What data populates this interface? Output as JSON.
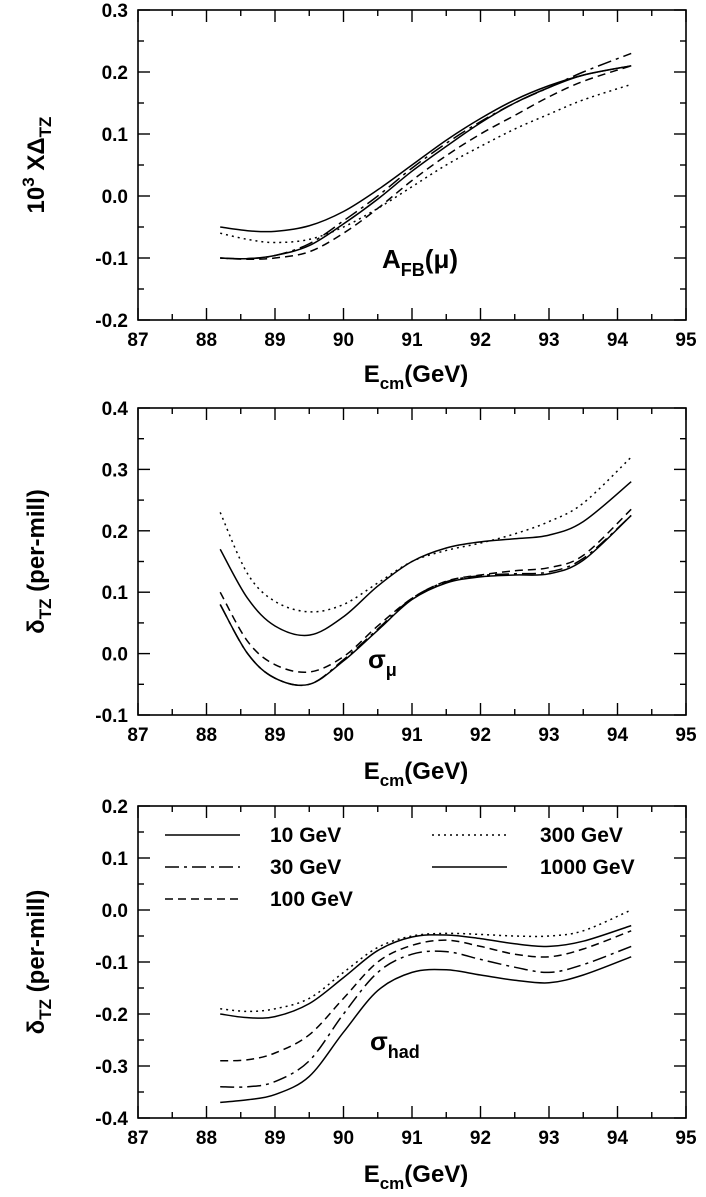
{
  "chart_data": [
    {
      "type": "line",
      "panel": "top",
      "ylabel": "10^3 XΔTZ",
      "ylabel_parts": {
        "base": "10",
        "sup": "3",
        "mid": " X",
        "greek": "Δ",
        "sub": "TZ"
      },
      "xlabel_parts": {
        "base": "E",
        "sub": "cm",
        "rest": "(GeV)"
      },
      "annotation": {
        "base": "A",
        "sub": "FB",
        "rest": "(μ)"
      },
      "xlim": [
        87,
        95
      ],
      "ylim": [
        -0.2,
        0.3
      ],
      "xticks": [
        87,
        88,
        89,
        90,
        91,
        92,
        93,
        94,
        95
      ],
      "xtick_labels": [
        "87",
        "88",
        "89",
        "90",
        "91",
        "92",
        "93",
        "94",
        "95"
      ],
      "yticks": [
        -0.2,
        -0.1,
        0.0,
        0.1,
        0.2,
        0.3
      ],
      "ytick_labels": [
        "-0.2",
        "-0.1",
        "0.0",
        "0.1",
        "0.2",
        "0.3"
      ],
      "x": [
        88.2,
        88.6,
        89.0,
        89.5,
        90.0,
        90.5,
        91.0,
        91.5,
        92.0,
        92.5,
        93.0,
        93.5,
        94.2
      ],
      "series": [
        {
          "name": "10 GeV",
          "style": "solid",
          "values": [
            -0.05,
            -0.056,
            -0.057,
            -0.048,
            -0.025,
            0.01,
            0.05,
            0.09,
            0.125,
            0.155,
            0.178,
            0.195,
            0.21
          ]
        },
        {
          "name": "30 GeV",
          "style": "dashdot",
          "values": [
            -0.1,
            -0.101,
            -0.096,
            -0.077,
            -0.04,
            0.0,
            0.045,
            0.085,
            0.12,
            0.15,
            0.175,
            0.2,
            0.23
          ]
        },
        {
          "name": "100 GeV",
          "style": "dashed",
          "values": [
            -0.1,
            -0.102,
            -0.1,
            -0.09,
            -0.06,
            -0.02,
            0.025,
            0.065,
            0.1,
            0.13,
            0.16,
            0.185,
            0.21
          ]
        },
        {
          "name": "300 GeV",
          "style": "dotted",
          "values": [
            -0.06,
            -0.07,
            -0.075,
            -0.07,
            -0.05,
            -0.02,
            0.015,
            0.05,
            0.08,
            0.108,
            0.132,
            0.155,
            0.18
          ]
        },
        {
          "name": "1000 GeV",
          "style": "solid",
          "values": [
            -0.1,
            -0.101,
            -0.096,
            -0.08,
            -0.045,
            -0.005,
            0.04,
            0.08,
            0.118,
            0.15,
            0.175,
            0.195,
            0.21
          ]
        }
      ]
    },
    {
      "type": "line",
      "panel": "middle",
      "ylabel": "δTZ (per-mill)",
      "ylabel_parts": {
        "greek": "δ",
        "sub": "TZ",
        "rest": " (per-mill)"
      },
      "xlabel_parts": {
        "base": "E",
        "sub": "cm",
        "rest": "(GeV)"
      },
      "annotation": {
        "base": "σ",
        "sub": "μ",
        "rest": ""
      },
      "xlim": [
        87,
        95
      ],
      "ylim": [
        -0.1,
        0.4
      ],
      "xticks": [
        87,
        88,
        89,
        90,
        91,
        92,
        93,
        94,
        95
      ],
      "xtick_labels": [
        "87",
        "88",
        "89",
        "90",
        "91",
        "92",
        "93",
        "94",
        "95"
      ],
      "yticks": [
        -0.1,
        0.0,
        0.1,
        0.2,
        0.3,
        0.4
      ],
      "ytick_labels": [
        "-0.1",
        "0.0",
        "0.1",
        "0.2",
        "0.3",
        "0.4"
      ],
      "x": [
        88.2,
        88.6,
        89.0,
        89.5,
        90.0,
        90.5,
        91.0,
        91.5,
        92.0,
        92.5,
        93.0,
        93.5,
        94.2
      ],
      "series": [
        {
          "name": "10 GeV",
          "style": "solid",
          "values": [
            0.17,
            0.09,
            0.045,
            0.03,
            0.06,
            0.11,
            0.15,
            0.172,
            0.182,
            0.187,
            0.193,
            0.215,
            0.28
          ]
        },
        {
          "name": "30 GeV",
          "style": "dashdot",
          "values": [
            0.08,
            0.0,
            -0.04,
            -0.05,
            -0.01,
            0.04,
            0.09,
            0.117,
            0.127,
            0.13,
            0.133,
            0.155,
            0.225
          ]
        },
        {
          "name": "100 GeV",
          "style": "dashed",
          "values": [
            0.1,
            0.02,
            -0.018,
            -0.03,
            -0.005,
            0.045,
            0.09,
            0.118,
            0.128,
            0.135,
            0.14,
            0.16,
            0.235
          ]
        },
        {
          "name": "300 GeV",
          "style": "dotted",
          "values": [
            0.23,
            0.13,
            0.085,
            0.068,
            0.08,
            0.115,
            0.15,
            0.168,
            0.18,
            0.195,
            0.215,
            0.245,
            0.32
          ]
        },
        {
          "name": "1000 GeV",
          "style": "solid",
          "values": [
            0.08,
            0.0,
            -0.04,
            -0.05,
            -0.012,
            0.038,
            0.088,
            0.115,
            0.125,
            0.128,
            0.13,
            0.152,
            0.225
          ]
        }
      ]
    },
    {
      "type": "line",
      "panel": "bottom",
      "ylabel": "δTZ (per-mill)",
      "ylabel_parts": {
        "greek": "δ",
        "sub": "TZ",
        "rest": " (per-mill)"
      },
      "xlabel_parts": {
        "base": "E",
        "sub": "cm",
        "rest": "(GeV)"
      },
      "annotation": {
        "base": "σ",
        "sub": "had",
        "rest": ""
      },
      "xlim": [
        87,
        95
      ],
      "ylim": [
        -0.4,
        0.2
      ],
      "xticks": [
        87,
        88,
        89,
        90,
        91,
        92,
        93,
        94,
        95
      ],
      "xtick_labels": [
        "87",
        "88",
        "89",
        "90",
        "91",
        "92",
        "93",
        "94",
        "95"
      ],
      "yticks": [
        -0.4,
        -0.3,
        -0.2,
        -0.1,
        0.0,
        0.1,
        0.2
      ],
      "ytick_labels": [
        "-0.4",
        "-0.3",
        "-0.2",
        "-0.1",
        "0.0",
        "0.1",
        "0.2"
      ],
      "legend": {
        "placement": "upper",
        "entries": [
          {
            "name": "10 GeV",
            "style": "solid"
          },
          {
            "name": "30 GeV",
            "style": "dashdot"
          },
          {
            "name": "100 GeV",
            "style": "dashed"
          },
          {
            "name": "300 GeV",
            "style": "dotted"
          },
          {
            "name": "1000 GeV",
            "style": "solid"
          }
        ]
      },
      "x": [
        88.2,
        88.6,
        89.0,
        89.5,
        90.0,
        90.5,
        91.0,
        91.5,
        92.0,
        92.5,
        93.0,
        93.5,
        94.2
      ],
      "series": [
        {
          "name": "10 GeV",
          "style": "solid",
          "values": [
            -0.2,
            -0.207,
            -0.205,
            -0.18,
            -0.13,
            -0.078,
            -0.052,
            -0.048,
            -0.055,
            -0.065,
            -0.07,
            -0.06,
            -0.03
          ]
        },
        {
          "name": "30 GeV",
          "style": "dashdot",
          "values": [
            -0.34,
            -0.34,
            -0.33,
            -0.29,
            -0.2,
            -0.12,
            -0.085,
            -0.08,
            -0.095,
            -0.11,
            -0.12,
            -0.105,
            -0.07
          ]
        },
        {
          "name": "100 GeV",
          "style": "dashed",
          "values": [
            -0.29,
            -0.288,
            -0.275,
            -0.24,
            -0.17,
            -0.1,
            -0.068,
            -0.058,
            -0.07,
            -0.085,
            -0.09,
            -0.075,
            -0.04
          ]
        },
        {
          "name": "300 GeV",
          "style": "dotted",
          "values": [
            -0.19,
            -0.195,
            -0.19,
            -0.17,
            -0.12,
            -0.072,
            -0.05,
            -0.045,
            -0.047,
            -0.05,
            -0.05,
            -0.04,
            0.0
          ]
        },
        {
          "name": "1000 GeV",
          "style": "solid",
          "values": [
            -0.37,
            -0.365,
            -0.355,
            -0.32,
            -0.235,
            -0.155,
            -0.12,
            -0.115,
            -0.125,
            -0.135,
            -0.14,
            -0.125,
            -0.09
          ]
        }
      ]
    }
  ]
}
